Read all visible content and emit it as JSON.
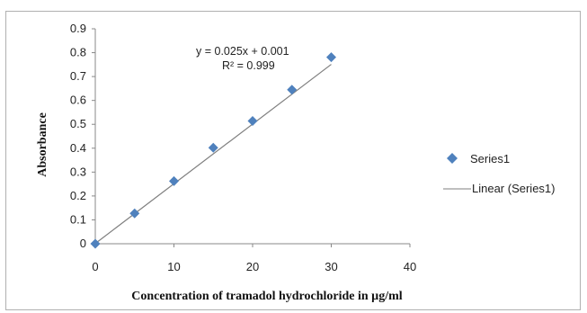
{
  "chart_data": {
    "type": "scatter",
    "title": "",
    "xlabel": "Concentration of tramadol hydrochloride in µg/ml",
    "ylabel": "Absorbance",
    "xlim": [
      0,
      40
    ],
    "ylim": [
      0,
      0.9
    ],
    "x_ticks": [
      "0",
      "10",
      "20",
      "30",
      "40"
    ],
    "y_ticks": [
      "0",
      "0.1",
      "0.2",
      "0.3",
      "0.4",
      "0.5",
      "0.6",
      "0.7",
      "0.8",
      "0.9"
    ],
    "grid": false,
    "legend_position": "right",
    "series": [
      {
        "name": "Series1",
        "marker": "diamond",
        "color": "#4f81bd",
        "x": [
          0,
          5,
          10,
          15,
          20,
          25,
          30
        ],
        "y": [
          0,
          0.127,
          0.262,
          0.402,
          0.514,
          0.645,
          0.781
        ]
      }
    ],
    "trendline": {
      "name": "Linear (Series1)",
      "color": "#7f7f7f",
      "slope": 0.025,
      "intercept": 0.001,
      "x_range": [
        0,
        30
      ],
      "equation_label": "y = 0.025x + 0.001",
      "r2_label": "R² = 0.999"
    },
    "legend": [
      "Series1",
      "Linear (Series1)"
    ]
  }
}
